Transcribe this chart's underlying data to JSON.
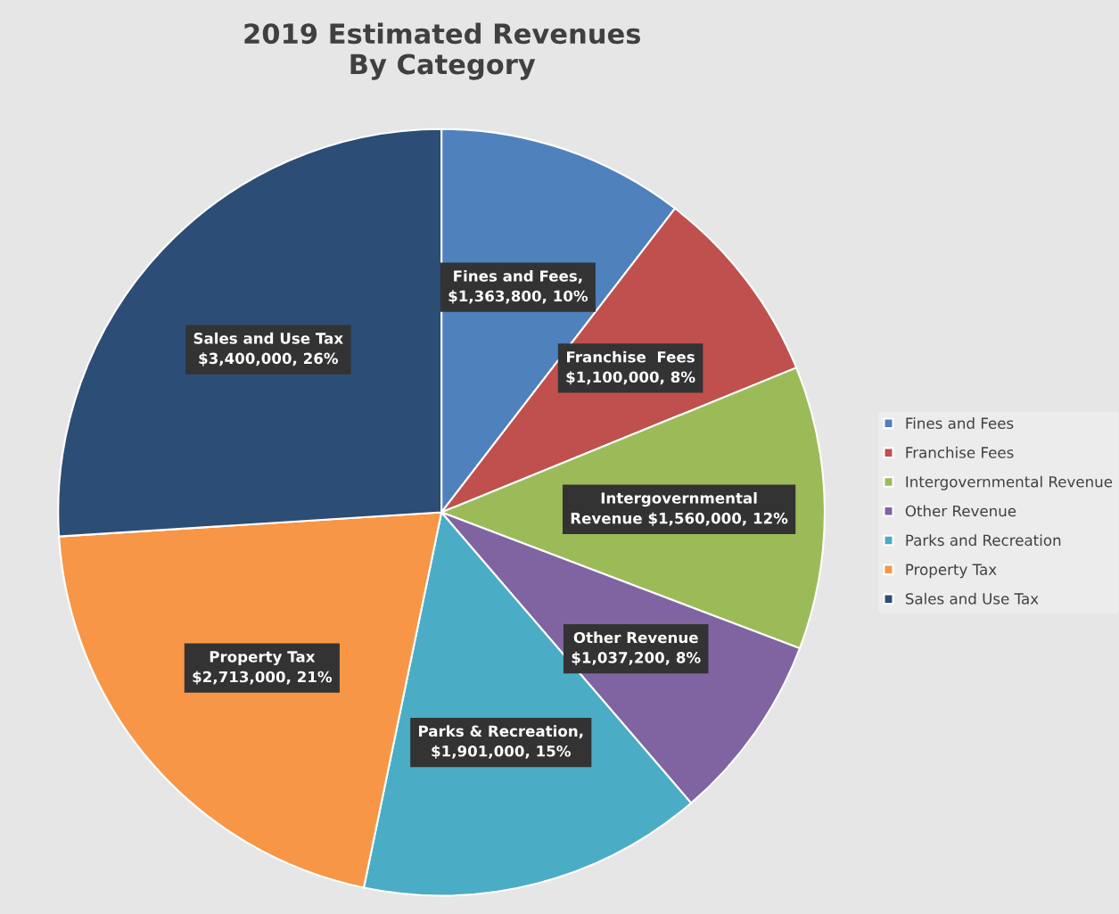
{
  "chart_data": {
    "type": "pie",
    "title": "2019 Estimated Revenues\nBy Category",
    "categories": [
      "Fines and Fees",
      "Franchise Fees",
      "Intergovernmental Revenue",
      "Other Revenue",
      "Parks and Recreation",
      "Property Tax",
      "Sales and Use Tax"
    ],
    "values": [
      1363800,
      1100000,
      1560000,
      1037200,
      1901000,
      2713000,
      3400000
    ],
    "colors": [
      "#4f81bd",
      "#c0504d",
      "#9bbb59",
      "#8064a2",
      "#4bacc6",
      "#f79646",
      "#2c4d75"
    ],
    "value_labels": [
      "Fines and Fees,\n$1,363,800, 10%",
      "Franchise  Fees\n$1,100,000, 8%",
      "Intergovernmental\nRevenue $1,560,000, 12%",
      "Other Revenue\n$1,037,200, 8%",
      "Parks & Recreation,\n$1,901,000, 15%",
      "Property Tax\n$2,713,000, 21%",
      "Sales and Use Tax\n$3,400,000, 26%"
    ],
    "legend": "right"
  }
}
